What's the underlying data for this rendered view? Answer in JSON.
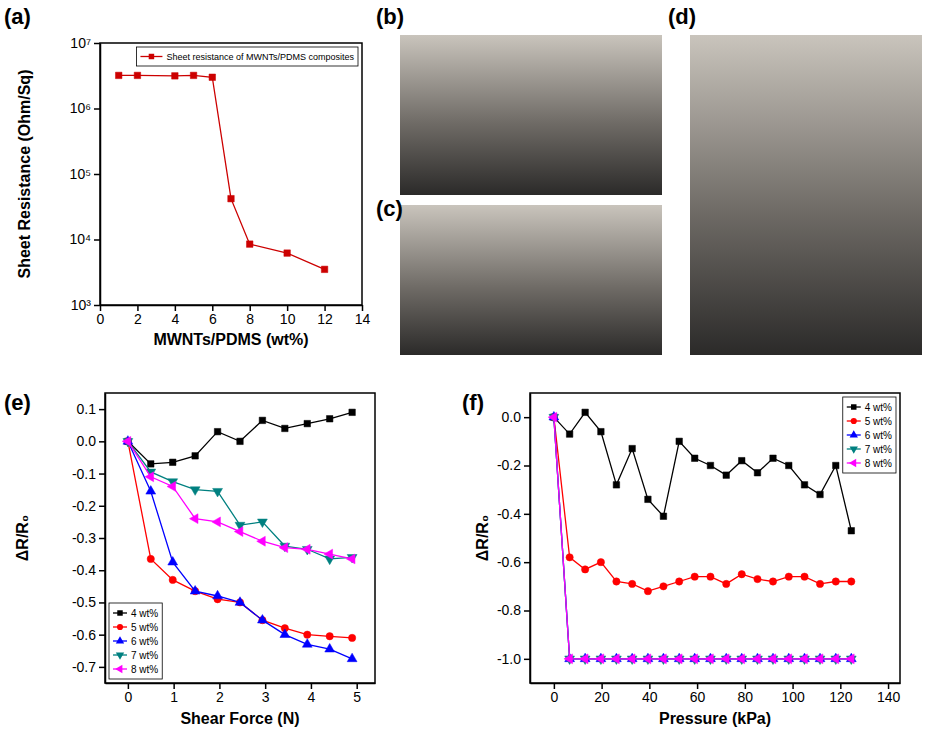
{
  "chart_data": [
    {
      "type": "line",
      "title": "(a)",
      "x_label": "MWNTs/PDMS (wt%)",
      "y_label": "Sheet Resistance (Ohm/Sq)",
      "x": [
        1,
        2,
        4,
        5,
        6,
        7,
        8,
        10,
        12
      ],
      "series": [
        {
          "name": "Sheet resistance of MWNTs/PDMS composites",
          "color": "#cc0000",
          "marker": "square",
          "values": [
            3200000,
            3200000,
            3150000,
            3200000,
            3000000,
            42000,
            8500,
            6200,
            3500
          ]
        }
      ],
      "xlim": [
        0,
        14
      ],
      "xticks": [
        0,
        2,
        4,
        6,
        8,
        10,
        12,
        14
      ],
      "ylim": [
        1000,
        10000000
      ],
      "yticks": [
        {
          "value": 1000,
          "label": "10³"
        },
        {
          "value": 10000,
          "label": "10⁴"
        },
        {
          "value": 100000,
          "label": "10⁵"
        },
        {
          "value": 1000000,
          "label": "10⁶"
        },
        {
          "value": 10000000,
          "label": "10⁷"
        }
      ],
      "log": "y",
      "legend": "top-right"
    },
    {
      "type": "line",
      "title": "(e)",
      "x_label": "Shear Force (N)",
      "y_label": "ΔR/R₀",
      "x": [
        0,
        0.5,
        0.98,
        1.47,
        1.96,
        2.45,
        2.94,
        3.43,
        3.92,
        4.41,
        4.9
      ],
      "series": [
        {
          "name": "4 wt%",
          "color": "#000000",
          "marker": "square",
          "values": [
            0,
            -0.07,
            -0.065,
            -0.045,
            0.03,
            0.0,
            0.065,
            0.04,
            0.055,
            0.07,
            0.09
          ]
        },
        {
          "name": "5 wt%",
          "color": "#ff0000",
          "marker": "circle",
          "values": [
            0,
            -0.365,
            -0.43,
            -0.465,
            -0.49,
            -0.5,
            -0.555,
            -0.58,
            -0.6,
            -0.605,
            -0.61
          ]
        },
        {
          "name": "6 wt%",
          "color": "#0000ff",
          "marker": "triangle-up",
          "values": [
            0,
            -0.155,
            -0.375,
            -0.465,
            -0.48,
            -0.5,
            -0.555,
            -0.6,
            -0.63,
            -0.645,
            -0.675
          ]
        },
        {
          "name": "7 wt%",
          "color": "#008080",
          "marker": "triangle-down",
          "values": [
            0,
            -0.095,
            -0.125,
            -0.15,
            -0.155,
            -0.26,
            -0.25,
            -0.325,
            -0.335,
            -0.365,
            -0.36
          ]
        },
        {
          "name": "8 wt%",
          "color": "#ff00ff",
          "marker": "triangle-left",
          "values": [
            0,
            -0.11,
            -0.14,
            -0.24,
            -0.25,
            -0.28,
            -0.31,
            -0.33,
            -0.335,
            -0.35,
            -0.365
          ]
        }
      ],
      "xlim": [
        -0.5,
        5.4
      ],
      "xticks": [
        0,
        1,
        2,
        3,
        4,
        5
      ],
      "ylim": [
        -0.75,
        0.15
      ],
      "yticks": [
        0.1,
        {
          "value": 0,
          "label": "0.0"
        },
        -0.1,
        -0.2,
        -0.3,
        -0.4,
        -0.5,
        -0.6,
        -0.7
      ],
      "legend": "bottom-left"
    },
    {
      "type": "line",
      "title": "(f)",
      "x_label": "Pressure (kPa)",
      "y_label": "ΔR/R₀",
      "x": [
        0,
        6.6,
        13.1,
        19.7,
        26.2,
        32.8,
        39.4,
        45.9,
        52.5,
        59,
        65.6,
        72.2,
        78.7,
        85.3,
        91.8,
        98.4,
        105,
        111.5,
        118.1,
        124.6
      ],
      "series": [
        {
          "name": "4 wt%",
          "color": "#000000",
          "marker": "square",
          "values": [
            0,
            -0.07,
            0.02,
            -0.06,
            -0.28,
            -0.13,
            -0.34,
            -0.41,
            -0.1,
            -0.17,
            -0.2,
            -0.24,
            -0.18,
            -0.23,
            -0.17,
            -0.2,
            -0.28,
            -0.32,
            -0.2,
            -0.47
          ]
        },
        {
          "name": "5 wt%",
          "color": "#ff0000",
          "marker": "circle",
          "values": [
            0,
            -0.58,
            -0.63,
            -0.6,
            -0.68,
            -0.69,
            -0.72,
            -0.7,
            -0.68,
            -0.66,
            -0.66,
            -0.69,
            -0.65,
            -0.67,
            -0.68,
            -0.66,
            -0.66,
            -0.69,
            -0.68,
            -0.68
          ]
        },
        {
          "name": "6 wt%",
          "color": "#0000ff",
          "marker": "triangle-up",
          "values": [
            0,
            -1,
            -1,
            -1,
            -1,
            -1,
            -1,
            -1,
            -1,
            -1,
            -1,
            -1,
            -1,
            -1,
            -1,
            -1,
            -1,
            -1,
            -1,
            -1
          ]
        },
        {
          "name": "7 wt%",
          "color": "#008080",
          "marker": "triangle-down",
          "values": [
            0,
            -1,
            -1,
            -1,
            -1,
            -1,
            -1,
            -1,
            -1,
            -1,
            -1,
            -1,
            -1,
            -1,
            -1,
            -1,
            -1,
            -1,
            -1,
            -1
          ]
        },
        {
          "name": "8 wt%",
          "color": "#ff00ff",
          "marker": "triangle-left",
          "values": [
            0,
            -1,
            -1,
            -1,
            -1,
            -1,
            -1,
            -1,
            -1,
            -1,
            -1,
            -1,
            -1,
            -1,
            -1,
            -1,
            -1,
            -1,
            -1,
            -1
          ]
        }
      ],
      "xlim": [
        -10,
        145
      ],
      "xticks": [
        0,
        20,
        40,
        60,
        80,
        100,
        120,
        140
      ],
      "ylim": [
        -1.1,
        0.1
      ],
      "yticks": [
        {
          "value": 0,
          "label": "0.0"
        },
        -0.2,
        -0.4,
        -0.6,
        -0.8,
        {
          "value": -1,
          "label": "-1.0"
        }
      ],
      "legend": "top-right"
    }
  ],
  "photos": [
    {
      "label": "(b)"
    },
    {
      "label": "(c)"
    },
    {
      "label": "(d)"
    }
  ]
}
